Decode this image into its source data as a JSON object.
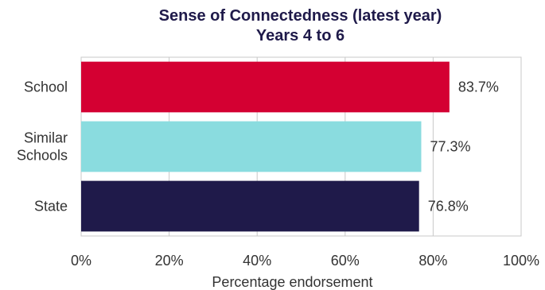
{
  "chart_data": {
    "type": "bar",
    "orientation": "horizontal",
    "title": "Sense of Connectedness (latest year)",
    "subtitle": "Years 4 to 6",
    "xlabel": "Percentage endorsement",
    "ylabel": "",
    "xlim": [
      0,
      100
    ],
    "x_ticks": [
      "0%",
      "20%",
      "40%",
      "60%",
      "80%",
      "100%"
    ],
    "grid": true,
    "legend": "none",
    "categories": [
      {
        "lines": [
          "School"
        ]
      },
      {
        "lines": [
          "Similar",
          "Schools"
        ]
      },
      {
        "lines": [
          "State"
        ]
      }
    ],
    "values": [
      83.7,
      77.3,
      76.8
    ],
    "value_labels": [
      "83.7%",
      "77.3%",
      "76.8%"
    ],
    "colors": [
      "#d40032",
      "#8adcdf",
      "#1f1a4a"
    ],
    "grid_color": "#c8c8c8",
    "text_color": "#333333",
    "title_color": "#1f1a4a"
  }
}
